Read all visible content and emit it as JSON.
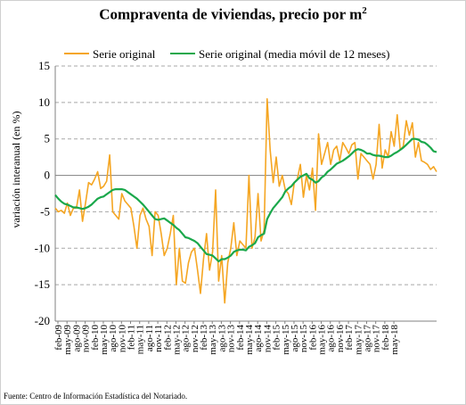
{
  "chart_data": {
    "type": "line",
    "title_main": "Compraventa de viviendas, precio por m",
    "title_sup": "2",
    "ylabel": "variación interanual  (en %)",
    "source": "Fuente: Centro de Información Estadística del Notariado.",
    "ylim": [
      -20,
      15
    ],
    "yticks": [
      -20,
      -15,
      -10,
      -5,
      0,
      5,
      10,
      15
    ],
    "grid": "horizontal dashed",
    "legend_position": "top",
    "x_tick_labels": [
      "feb-09",
      "may-09",
      "ago-09",
      "nov-09",
      "feb-10",
      "may-10",
      "ago-10",
      "nov-10",
      "feb-11",
      "may-11",
      "ago-11",
      "nov-11",
      "feb-12",
      "may-12",
      "ago-12",
      "nov-12",
      "feb-13",
      "may-13",
      "ago-13",
      "nov-13",
      "feb-14",
      "may-14",
      "ago-14",
      "nov-14",
      "feb-15",
      "may-15",
      "ago-15",
      "nov-15",
      "feb-16",
      "may-16",
      "ago-16",
      "nov-16",
      "feb-17",
      "may-17",
      "ago-17",
      "nov-17",
      "feb-18",
      "may-18"
    ],
    "series": [
      {
        "name": "Serie original",
        "color": "#f5a623",
        "values": [
          -4.5,
          -5.0,
          -4.8,
          -5.2,
          -3.8,
          -5.5,
          -4.5,
          -4.5,
          -2.0,
          -6.3,
          -3.8,
          -1.0,
          -1.3,
          -0.5,
          0.5,
          -1.8,
          -1.5,
          -0.8,
          2.8,
          -5.0,
          -5.5,
          -6.0,
          -2.5,
          -3.5,
          -4.0,
          -4.5,
          -7.0,
          -10.0,
          -5.5,
          -4.5,
          -6.0,
          -7.0,
          -11.0,
          -5.0,
          -5.5,
          -8.0,
          -11.0,
          -10.0,
          -8.0,
          -5.5,
          -15.0,
          -10.0,
          -14.5,
          -14.8,
          -12.0,
          -10.5,
          -10.0,
          -13.0,
          -16.2,
          -11.5,
          -8.0,
          -13.0,
          -10.5,
          -2.0,
          -14.5,
          -11.0,
          -17.5,
          -12.0,
          -10.0,
          -6.5,
          -11.0,
          -9.0,
          -9.5,
          -10.0,
          0.0,
          -10.0,
          -8.5,
          -2.5,
          -9.0,
          -7.5,
          10.5,
          3.5,
          -1.0,
          2.5,
          -1.5,
          0.0,
          -2.0,
          -2.5,
          -4.0,
          -1.0,
          -0.5,
          1.5,
          -3.0,
          0.0,
          -2.0,
          1.0,
          -4.8,
          5.7,
          1.5,
          3.0,
          4.5,
          1.5,
          3.5,
          4.0,
          2.0,
          4.5,
          3.8,
          3.0,
          4.2,
          4.5,
          -0.5,
          3.0,
          2.5,
          2.0,
          1.5,
          -0.5,
          1.5,
          7.0,
          1.0,
          3.5,
          2.5,
          6.0,
          4.0,
          8.3,
          3.5,
          4.0,
          7.5,
          5.5,
          7.2,
          2.5,
          4.5,
          2.0,
          1.8,
          1.5,
          0.8,
          1.2,
          0.5
        ]
      },
      {
        "name": "Serie original  (media móvil de 12 meses)",
        "color": "#1aa84b",
        "values": [
          -2.7,
          -3.2,
          -3.6,
          -3.9,
          -4.0,
          -4.2,
          -4.4,
          -4.4,
          -4.5,
          -4.6,
          -4.5,
          -4.3,
          -4.0,
          -3.6,
          -3.2,
          -3.0,
          -2.9,
          -2.6,
          -2.3,
          -2.0,
          -1.9,
          -1.9,
          -1.9,
          -2.0,
          -2.3,
          -2.6,
          -2.9,
          -3.2,
          -3.6,
          -4.0,
          -4.5,
          -5.0,
          -5.5,
          -6.0,
          -6.1,
          -6.0,
          -5.9,
          -6.2,
          -6.5,
          -6.8,
          -7.2,
          -7.5,
          -8.0,
          -8.5,
          -8.6,
          -8.8,
          -9.0,
          -9.3,
          -9.8,
          -10.3,
          -10.8,
          -10.9,
          -11.0,
          -11.4,
          -11.8,
          -11.5,
          -11.5,
          -11.3,
          -11.0,
          -10.5,
          -10.3,
          -10.2,
          -10.2,
          -10.3,
          -9.8,
          -9.6,
          -9.3,
          -8.5,
          -8.2,
          -8.0,
          -6.0,
          -5.2,
          -4.5,
          -4.0,
          -3.5,
          -3.0,
          -2.2,
          -1.8,
          -1.5,
          -1.0,
          -0.6,
          -0.2,
          0.0,
          0.2,
          -0.4,
          -0.6,
          -1.0,
          -0.8,
          -0.3,
          0.0,
          0.5,
          0.8,
          1.2,
          1.6,
          1.8,
          2.0,
          2.3,
          2.6,
          3.0,
          3.4,
          3.6,
          3.5,
          3.3,
          3.0,
          3.0,
          2.8,
          2.7,
          2.7,
          2.6,
          2.5,
          2.5,
          2.7,
          3.0,
          3.2,
          3.5,
          3.8,
          4.2,
          4.6,
          5.0,
          5.0,
          4.9,
          4.6,
          4.5,
          4.2,
          3.8,
          3.3,
          3.2
        ]
      }
    ]
  }
}
